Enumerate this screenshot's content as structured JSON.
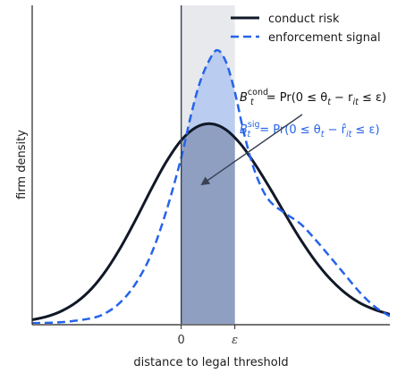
{
  "chart_data": {
    "type": "line",
    "title": "",
    "xlabel": "distance to legal threshold",
    "ylabel": "firm density",
    "x_ticks": [
      "0",
      "ε"
    ],
    "threshold_band": {
      "from_label": "0",
      "to_label": "ε"
    },
    "series": [
      {
        "name": "conduct risk",
        "color": "#111827",
        "style": "solid",
        "points": [
          [
            -5.0,
            0.017
          ],
          [
            -4.5,
            0.031
          ],
          [
            -4.0,
            0.055
          ],
          [
            -3.5,
            0.093
          ],
          [
            -3.0,
            0.15
          ],
          [
            -2.5,
            0.23
          ],
          [
            -2.0,
            0.331
          ],
          [
            -1.5,
            0.448
          ],
          [
            -1.0,
            0.572
          ],
          [
            -0.5,
            0.687
          ],
          [
            0.0,
            0.778
          ],
          [
            0.5,
            0.833
          ],
          [
            1.0,
            0.848
          ],
          [
            1.5,
            0.823
          ],
          [
            2.0,
            0.761
          ],
          [
            2.5,
            0.672
          ],
          [
            3.0,
            0.57
          ],
          [
            3.5,
            0.462
          ],
          [
            4.0,
            0.358
          ],
          [
            4.5,
            0.266
          ],
          [
            5.0,
            0.19
          ],
          [
            5.5,
            0.131
          ],
          [
            6.0,
            0.088
          ],
          [
            6.5,
            0.06
          ],
          [
            7.0,
            0.04
          ]
        ]
      },
      {
        "name": "enforcement signal",
        "color": "#2563eb",
        "style": "dashed",
        "points": [
          [
            -5.0,
            0.003
          ],
          [
            -4.0,
            0.007
          ],
          [
            -3.0,
            0.024
          ],
          [
            -2.5,
            0.048
          ],
          [
            -2.0,
            0.096
          ],
          [
            -1.5,
            0.176
          ],
          [
            -1.0,
            0.297
          ],
          [
            -0.5,
            0.478
          ],
          [
            0.0,
            0.704
          ],
          [
            0.3,
            0.87
          ],
          [
            0.6,
            1.013
          ],
          [
            0.9,
            1.107
          ],
          [
            1.2,
            1.16
          ],
          [
            1.5,
            1.111
          ],
          [
            1.8,
            0.982
          ],
          [
            2.1,
            0.811
          ],
          [
            2.4,
            0.672
          ],
          [
            2.7,
            0.576
          ],
          [
            3.0,
            0.516
          ],
          [
            3.5,
            0.467
          ],
          [
            4.0,
            0.424
          ],
          [
            4.5,
            0.357
          ],
          [
            5.0,
            0.283
          ],
          [
            5.5,
            0.207
          ],
          [
            6.0,
            0.132
          ],
          [
            6.5,
            0.072
          ],
          [
            7.0,
            0.032
          ]
        ]
      }
    ],
    "xlim": [
      -5.0,
      7.0
    ],
    "ylim": [
      0.0,
      1.35
    ],
    "band": [
      0.0,
      1.8
    ],
    "grid": false,
    "legend_position": "top-right",
    "annotations": {
      "cond": {
        "symbol": "B",
        "sup": "cond",
        "sub": "t",
        "rhs_parts": [
          "= Pr(0 ≤ θ",
          "t",
          " − r",
          "it",
          " ≤ ε)"
        ],
        "color": "#111111"
      },
      "sig": {
        "symbol": "B",
        "sup": "sig",
        "sub": "t",
        "rhs_parts": [
          "= Pr(0 ≤ θ",
          "t",
          " − r̂",
          "it",
          " ≤ ε)"
        ],
        "color": "#2563eb"
      }
    }
  }
}
